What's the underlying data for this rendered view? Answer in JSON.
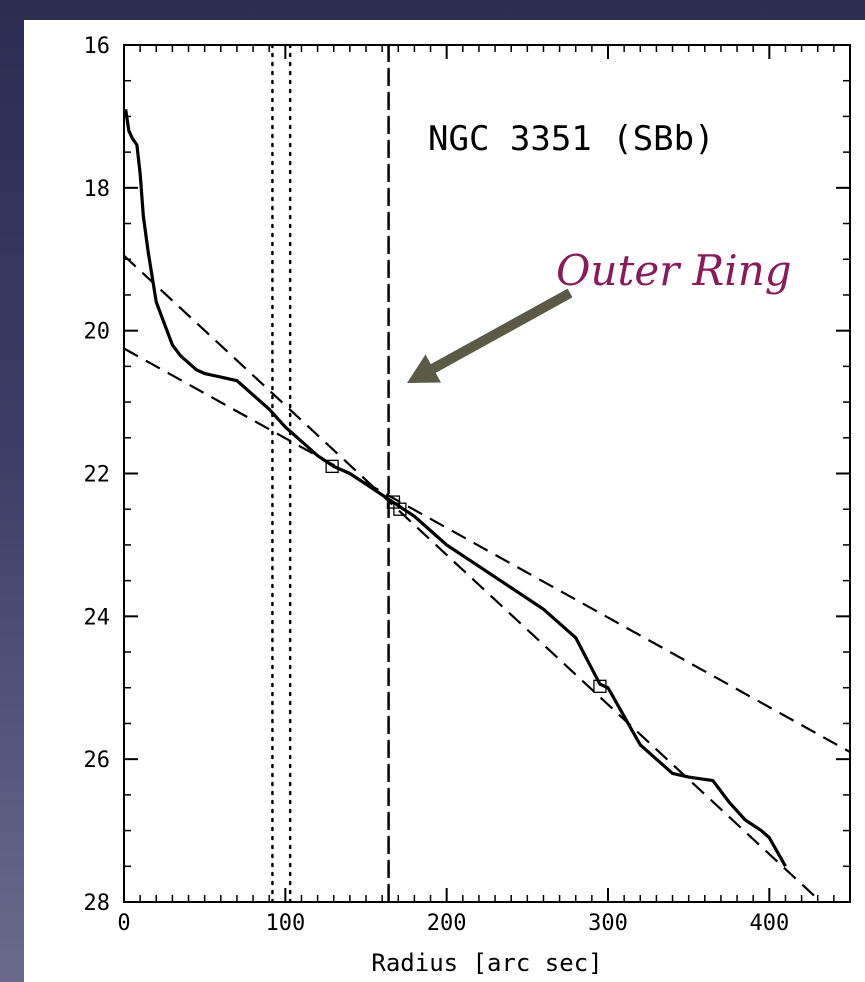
{
  "chart_data": {
    "type": "line",
    "title": "NGC 3351 (SBb)",
    "xlabel": "Radius [arc sec]",
    "ylabel": "",
    "xlim": [
      0,
      450
    ],
    "ylim": [
      28,
      16
    ],
    "x_ticks": [
      0,
      100,
      200,
      300,
      400
    ],
    "y_ticks": [
      16,
      18,
      20,
      22,
      24,
      26,
      28
    ],
    "series": [
      {
        "style": "solid",
        "x": [
          1,
          3,
          5,
          8,
          10,
          12,
          15,
          20,
          25,
          30,
          35,
          40,
          45,
          50,
          60,
          70,
          75,
          80,
          90,
          100,
          110,
          120,
          130,
          140,
          150,
          160,
          170,
          180,
          190,
          200,
          220,
          240,
          260,
          280,
          295,
          300,
          310,
          320,
          330,
          340,
          350,
          365,
          375,
          385,
          395,
          400,
          410
        ],
        "y": [
          16.9,
          17.2,
          17.3,
          17.4,
          17.8,
          18.4,
          18.9,
          19.6,
          19.9,
          20.2,
          20.35,
          20.45,
          20.55,
          20.6,
          20.65,
          20.7,
          20.8,
          20.9,
          21.1,
          21.35,
          21.55,
          21.75,
          21.9,
          22.0,
          22.15,
          22.3,
          22.45,
          22.6,
          22.8,
          23.0,
          23.3,
          23.6,
          23.9,
          24.3,
          24.95,
          25.0,
          25.4,
          25.8,
          26.0,
          26.2,
          26.25,
          26.3,
          26.6,
          26.85,
          27.0,
          27.1,
          27.5
        ]
      },
      {
        "style": "dashed",
        "x": [
          0,
          450
        ],
        "y": [
          20.25,
          25.9
        ]
      },
      {
        "style": "dashed",
        "x": [
          0,
          432
        ],
        "y": [
          18.95,
          28.0
        ]
      }
    ],
    "markers": {
      "shape": "square",
      "x": [
        129,
        167,
        171,
        295
      ],
      "y": [
        21.9,
        22.4,
        22.5,
        24.98
      ]
    },
    "vertical_lines": [
      {
        "x": 92,
        "style": "dotted"
      },
      {
        "x": 103,
        "style": "dotted"
      },
      {
        "x": 164,
        "style": "dashed"
      }
    ],
    "annotation": {
      "text": "Outer Ring",
      "color": "#8b1a5a",
      "arrow_color": "#5a5a46"
    }
  }
}
